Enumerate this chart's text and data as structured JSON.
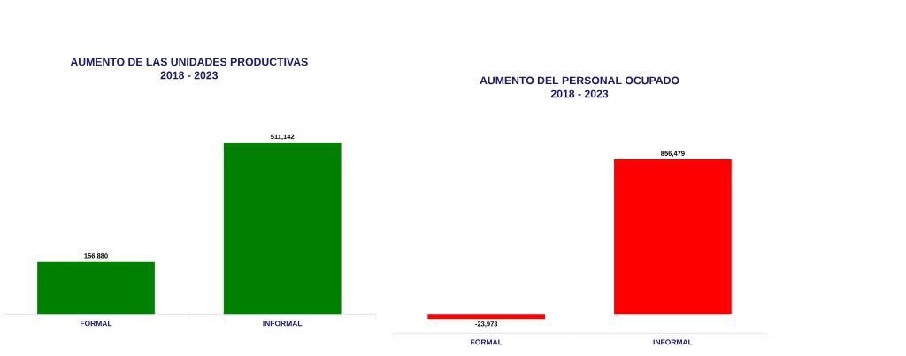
{
  "chart_data": [
    {
      "type": "bar",
      "title": "AUMENTO DE LAS UNIDADES PRODUCTIVAS",
      "subtitle": "2018 - 2023",
      "categories": [
        "FORMAL",
        "INFORMAL"
      ],
      "values": [
        156880,
        511142
      ],
      "value_labels": [
        "156,880",
        "511,142"
      ],
      "color": "#008000"
    },
    {
      "type": "bar",
      "title": "AUMENTO DEL PERSONAL OCUPADO",
      "subtitle": "2018 - 2023",
      "categories": [
        "FORMAL",
        "INFORMAL"
      ],
      "values": [
        -23973,
        856479
      ],
      "value_labels": [
        "-23,973",
        "856,479"
      ],
      "color": "#ff0000"
    }
  ]
}
